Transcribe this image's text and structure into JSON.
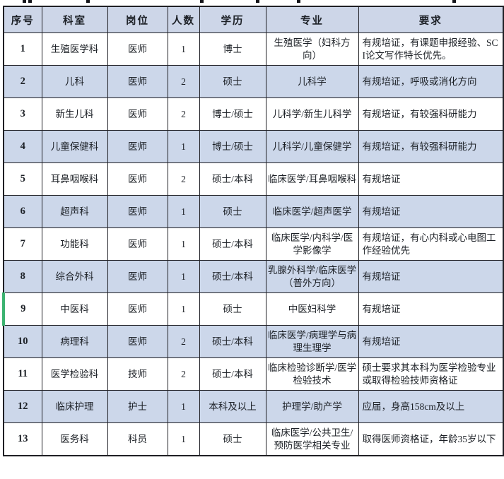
{
  "table": {
    "columns": [
      {
        "key": "no",
        "label": "序号"
      },
      {
        "key": "department",
        "label": "科室"
      },
      {
        "key": "position",
        "label": "岗位"
      },
      {
        "key": "count",
        "label": "人数"
      },
      {
        "key": "education",
        "label": "学历"
      },
      {
        "key": "major",
        "label": "专业"
      },
      {
        "key": "requirement",
        "label": "要求"
      }
    ],
    "rows": [
      {
        "no": "1",
        "department": "生殖医学科",
        "position": "医师",
        "count": "1",
        "education": "博士",
        "major": "生殖医学（妇科方向）",
        "requirement": "有规培证，有课题申报经验、SCI论文写作特长优先。"
      },
      {
        "no": "2",
        "department": "儿科",
        "position": "医师",
        "count": "2",
        "education": "硕士",
        "major": "儿科学",
        "requirement": "有规培证，呼吸或消化方向"
      },
      {
        "no": "3",
        "department": "新生儿科",
        "position": "医师",
        "count": "2",
        "education": "博士/硕士",
        "major": "儿科学/新生儿科学",
        "requirement": "有规培证，有较强科研能力"
      },
      {
        "no": "4",
        "department": "儿童保健科",
        "position": "医师",
        "count": "1",
        "education": "博士/硕士",
        "major": "儿科学/儿童保健学",
        "requirement": "有规培证，有较强科研能力"
      },
      {
        "no": "5",
        "department": "耳鼻咽喉科",
        "position": "医师",
        "count": "2",
        "education": "硕士/本科",
        "major": "临床医学/耳鼻咽喉科",
        "requirement": "有规培证"
      },
      {
        "no": "6",
        "department": "超声科",
        "position": "医师",
        "count": "1",
        "education": "硕士",
        "major": "临床医学/超声医学",
        "requirement": "有规培证"
      },
      {
        "no": "7",
        "department": "功能科",
        "position": "医师",
        "count": "1",
        "education": "硕士/本科",
        "major": "临床医学/内科学/医学影像学",
        "requirement": "有规培证，有心内科或心电图工作经验优先"
      },
      {
        "no": "8",
        "department": "综合外科",
        "position": "医师",
        "count": "1",
        "education": "硕士/本科",
        "major": "乳腺外科学/临床医学（普外方向）",
        "requirement": "有规培证"
      },
      {
        "no": "9",
        "department": "中医科",
        "position": "医师",
        "count": "1",
        "education": "硕士",
        "major": "中医妇科学",
        "requirement": "有规培证"
      },
      {
        "no": "10",
        "department": "病理科",
        "position": "医师",
        "count": "2",
        "education": "硕士/本科",
        "major": "临床医学/病理学与病理生理学",
        "requirement": "有规培证"
      },
      {
        "no": "11",
        "department": "医学检验科",
        "position": "技师",
        "count": "2",
        "education": "硕士/本科",
        "major": "临床检验诊断学/医学检验技术",
        "requirement": "硕士要求其本科为医学检验专业或取得检验技师资格证"
      },
      {
        "no": "12",
        "department": "临床护理",
        "position": "护士",
        "count": "1",
        "education": "本科及以上",
        "major": "护理学/助产学",
        "requirement": "应届，身高158cm及以上"
      },
      {
        "no": "13",
        "department": "医务科",
        "position": "科员",
        "count": "1",
        "education": "硕士",
        "major": "临床医学/公共卫生/预防医学相关专业",
        "requirement": "取得医师资格证，年龄35岁以下"
      }
    ],
    "highlighted_row_no": "9"
  },
  "colors": {
    "header_bg": "#cdd6e8",
    "zebra_bg": "#ccd7ea",
    "border": "#1f1f24",
    "text": "#1c2026",
    "highlight_marker": "#3cb371"
  },
  "artifacts": {
    "top_fragment_positions": [
      32,
      40,
      122,
      283,
      362,
      420,
      640
    ]
  }
}
